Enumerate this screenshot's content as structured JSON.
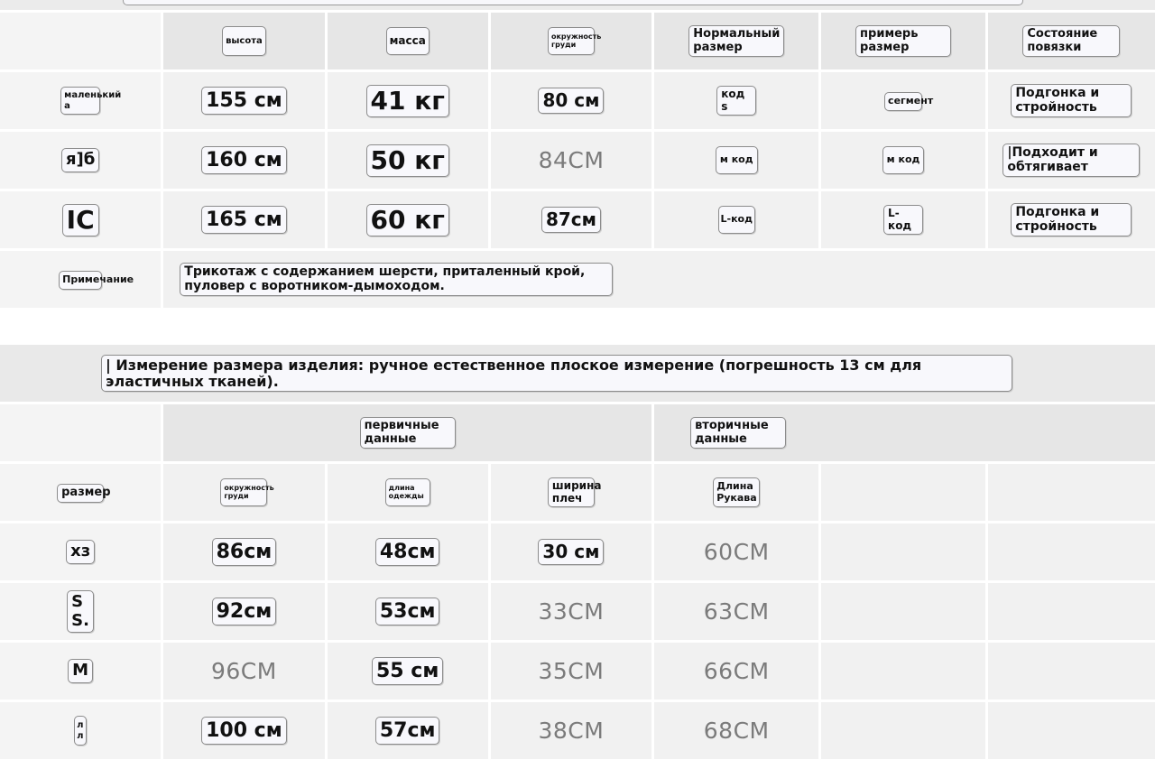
{
  "size_table": {
    "headers": [
      "высота",
      "масса",
      "окружность груди",
      "Нормальный размер",
      "примерь размер",
      "Состояние повязки"
    ],
    "rows": [
      {
        "label": "маленький а",
        "height": "155 см",
        "weight": "41 кг",
        "chest": "80 см",
        "normal": "код s",
        "fit": "сегмент",
        "state": "Подгонка и стройность"
      },
      {
        "label": "я]б",
        "height": "160 см",
        "weight": "50 кг",
        "chest": "84CM",
        "normal": "м код",
        "fit": "м код",
        "state": "|Подходит и обтягивает"
      },
      {
        "label": "IC",
        "height": "165 см",
        "weight": "60 кг",
        "chest": "87см",
        "normal": "L-код",
        "fit": "L-код",
        "state": "Подгонка и стройность"
      }
    ],
    "note_label": "Примечание",
    "note": "Трикотаж с содержанием шерсти, приталенный крой, пуловер с воротником-дымоходом."
  },
  "measure_table": {
    "title": "| Измерение размера изделия: ручное естественное плоское измерение (погрешность 13 см для эластичных тканей).",
    "group_primary": "первичные данные",
    "group_secondary": "вторичные данные",
    "headers": [
      "размер",
      "окружность груди",
      "длина одежды",
      "ширина плеч",
      "Длина Рукава"
    ],
    "rows": [
      {
        "size": "хз",
        "chest": "86см",
        "length": "48см",
        "shoulder": "30 см",
        "sleeve": "60CM"
      },
      {
        "size": "S S.",
        "chest": "92см",
        "length": "53см",
        "shoulder": "33CM",
        "sleeve": "63CM"
      },
      {
        "size": "М",
        "chest": "96CM",
        "length": "55 см",
        "shoulder": "35CM",
        "sleeve": "66CM"
      },
      {
        "size": "л л",
        "chest": "100 см",
        "length": "57см",
        "shoulder": "38CM",
        "sleeve": "68CM"
      }
    ]
  },
  "colors": {
    "cell": "#f1f1f1",
    "header": "#e6e6e6",
    "pill_border": "#8c8c8c",
    "plain_text": "#7b7b7b"
  }
}
